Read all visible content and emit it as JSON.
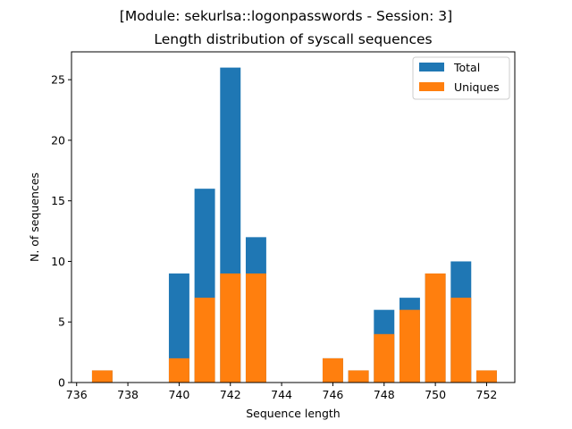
{
  "chart_data": {
    "type": "bar",
    "title": "[Module: sekurlsa::logonpasswords - Session: 3]",
    "subtitle": "Length distribution of syscall sequences",
    "xlabel": "Sequence length",
    "ylabel": "N. of sequences",
    "x": [
      737,
      738,
      739,
      740,
      741,
      742,
      743,
      744,
      745,
      746,
      747,
      748,
      749,
      750,
      751,
      752
    ],
    "series": [
      {
        "name": "Total",
        "color": "#1f77b4",
        "values": [
          1,
          0,
          0,
          9,
          16,
          26,
          12,
          0,
          0,
          2,
          1,
          6,
          7,
          9,
          10,
          1
        ]
      },
      {
        "name": "Uniques",
        "color": "#ff7f0e",
        "values": [
          1,
          0,
          0,
          2,
          7,
          9,
          9,
          0,
          0,
          2,
          1,
          4,
          6,
          9,
          7,
          1
        ]
      }
    ],
    "xlim": [
      735.8,
      753.1
    ],
    "ylim": [
      0,
      27.3
    ],
    "xticks": [
      "736",
      "738",
      "740",
      "742",
      "744",
      "746",
      "748",
      "750",
      "752"
    ],
    "yticks": [
      "0",
      "5",
      "10",
      "15",
      "20",
      "25"
    ],
    "legend": "top-right",
    "grid": false
  }
}
